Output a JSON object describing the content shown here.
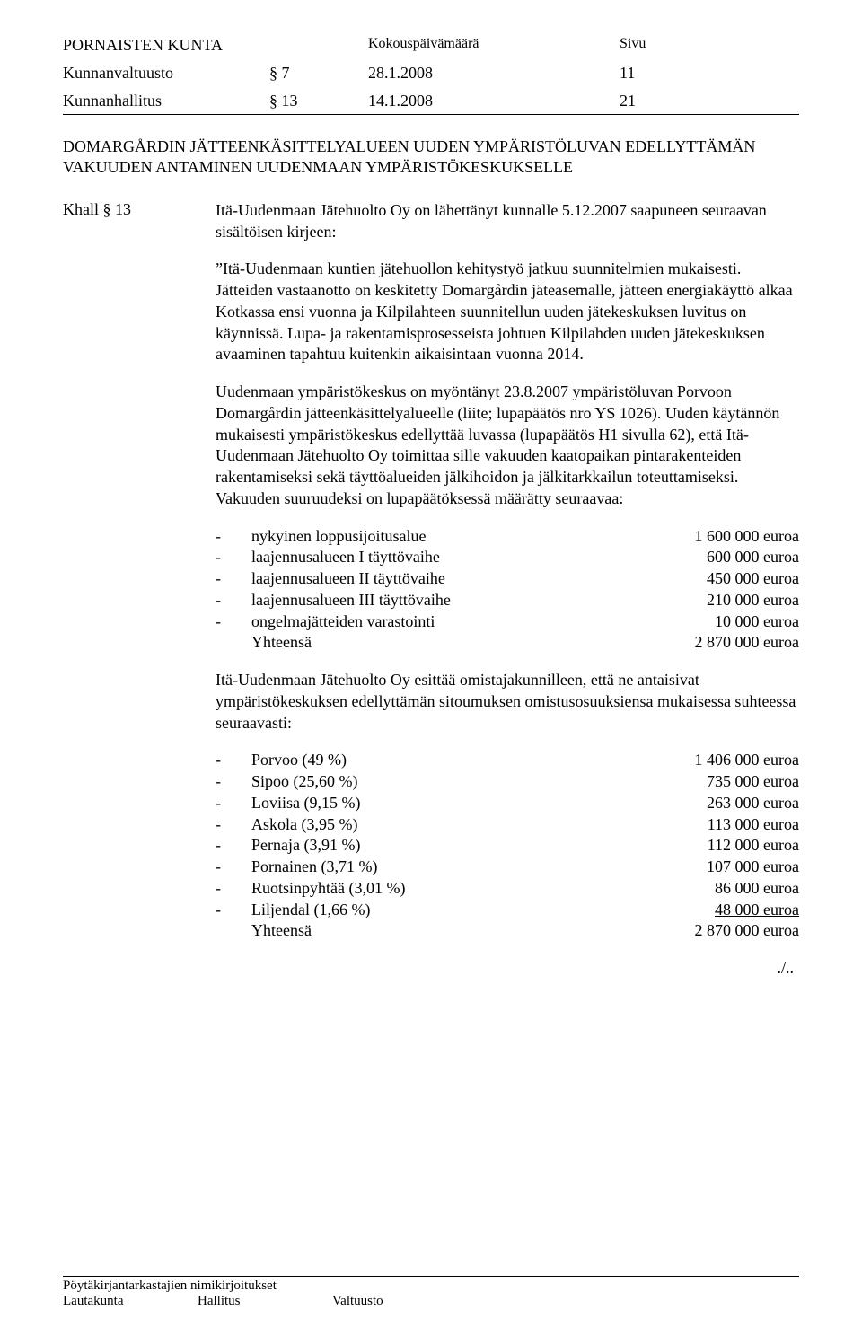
{
  "header": {
    "org": "PORNAISTEN KUNTA",
    "date_label": "Kokouspäivämäärä",
    "page_label": "Sivu"
  },
  "meetings": [
    {
      "body": "Kunnanvaltuusto",
      "section": "§ 7",
      "date": "28.1.2008",
      "page": "11"
    },
    {
      "body": "Kunnanhallitus",
      "section": "§ 13",
      "date": "14.1.2008",
      "page": "21"
    }
  ],
  "title": "DOMARGÅRDIN JÄTTEENKÄSITTELYALUEEN UUDEN YMPÄRISTÖLUVAN EDELLYTTÄMÄN VAKUUDEN ANTAMINEN UUDENMAAN YMPÄRISTÖKESKUKSELLE",
  "left_label": "Khall § 13",
  "para1": "Itä-Uudenmaan Jätehuolto Oy on lähettänyt kunnalle 5.12.2007 saapuneen seuraavan sisältöisen kirjeen:",
  "para2": "”Itä-Uudenmaan kuntien jätehuollon kehitystyö jatkuu suunnitelmien mukaisesti. Jätteiden vastaanotto on keskitetty Domargårdin jäteasemalle, jätteen energiakäyttö alkaa Kotkassa ensi vuonna ja Kilpilahteen suunnitellun uuden jätekeskuksen luvitus on käynnissä. Lupa- ja rakentamisprosesseista johtuen Kilpilahden uuden jätekeskuksen avaaminen tapahtuu kuitenkin aikaisintaan vuonna 2014.",
  "para3": "Uudenmaan ympäristökeskus on myöntänyt 23.8.2007 ympäristöluvan Porvoon Domargårdin jätteenkäsittelyalueelle (liite; lupapäätös nro YS 1026). Uuden käytännön mukaisesti ympäristökeskus edellyttää luvassa (lupapäätös H1 sivulla 62), että Itä-Uudenmaan Jätehuolto Oy toimittaa sille vakuuden kaatopaikan pintarakenteiden rakentamiseksi sekä täyttöalueiden jälkihoidon ja jälkitarkkailun toteuttamiseksi. Vakuuden suuruudeksi on lupapäätöksessä määrätty seuraavaa:",
  "amounts1": [
    {
      "label": "nykyinen loppusijoitusalue",
      "value": "1 600 000 euroa"
    },
    {
      "label": "laajennusalueen I täyttövaihe",
      "value": "600 000 euroa"
    },
    {
      "label": "laajennusalueen II täyttövaihe",
      "value": "450 000 euroa"
    },
    {
      "label": "laajennusalueen III täyttövaihe",
      "value": "210 000 euroa"
    },
    {
      "label": "ongelmajätteiden varastointi",
      "value": "10 000 euroa",
      "underline": true
    }
  ],
  "total1": {
    "label": "Yhteensä",
    "value": "2 870 000 euroa"
  },
  "para4": "Itä-Uudenmaan Jätehuolto Oy esittää omistajakunnilleen, että ne antaisivat ympäristökeskuksen edellyttämän sitoumuksen omistusosuuksiensa mukaisessa suhteessa seuraavasti:",
  "amounts2": [
    {
      "label": "Porvoo (49 %)",
      "value": "1 406 000 euroa"
    },
    {
      "label": "Sipoo (25,60 %)",
      "value": "735 000 euroa"
    },
    {
      "label": "Loviisa (9,15 %)",
      "value": "263 000 euroa"
    },
    {
      "label": "Askola (3,95 %)",
      "value": "113 000 euroa"
    },
    {
      "label": "Pernaja (3,91 %)",
      "value": "112 000 euroa"
    },
    {
      "label": "Pornainen (3,71 %)",
      "value": "107 000 euroa"
    },
    {
      "label": "Ruotsinpyhtää (3,01 %)",
      "value": "86 000 euroa"
    },
    {
      "label": "Liljendal (1,66 %)",
      "value": "48 000 euroa",
      "underline": true
    }
  ],
  "total2": {
    "label": "Yhteensä",
    "value": "2 870 000 euroa"
  },
  "cont": "./..",
  "footer": {
    "left": "Pöytäkirjantarkastajien nimikirjoitukset",
    "l": "Lautakunta",
    "h": "Hallitus",
    "v": "Valtuusto"
  }
}
